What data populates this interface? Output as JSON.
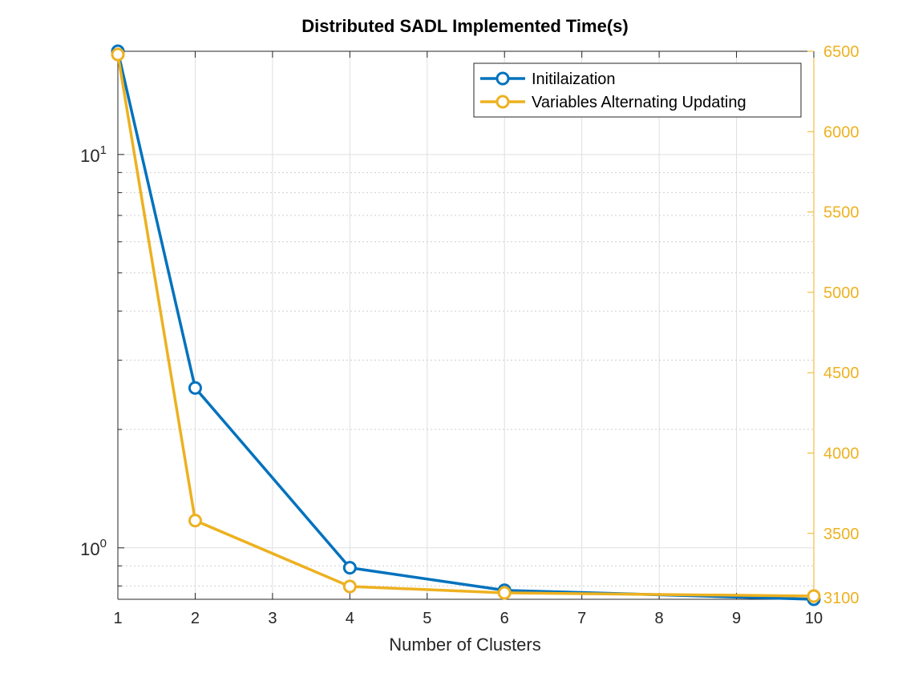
{
  "chart_data": {
    "type": "line",
    "title": "Distributed SADL Implemented Time(s)",
    "xlabel": "Number of Clusters",
    "ylabel_left": "",
    "ylabel_right": "",
    "x_tick_labels": [
      "1",
      "2",
      "3",
      "4",
      "5",
      "6",
      "7",
      "8",
      "9",
      "10"
    ],
    "categories": [
      "1",
      "2",
      "4",
      "6",
      "10"
    ],
    "y_left": {
      "scale": "log",
      "lim": [
        0.74,
        18.3
      ],
      "ticks": [
        {
          "value": 1,
          "base": "10",
          "exp": "0"
        },
        {
          "value": 10,
          "base": "10",
          "exp": "1"
        }
      ]
    },
    "y_right": {
      "scale": "linear",
      "lim": [
        3090,
        6500
      ],
      "ticks": [
        3100,
        3500,
        4000,
        4500,
        5000,
        5500,
        6000,
        6500
      ]
    },
    "grid": true,
    "legend_position": "top-right",
    "series": [
      {
        "name": "Initilaization",
        "axis": "left",
        "color": "#0072BD",
        "marker": "circle",
        "values": [
          18.3,
          2.55,
          0.89,
          0.78,
          0.74
        ]
      },
      {
        "name": "Variables Alternating Updating",
        "axis": "right",
        "color": "#EDB120",
        "marker": "circle",
        "values": [
          6480,
          3580,
          3170,
          3130,
          3110
        ]
      }
    ]
  },
  "colors": {
    "left_axis": "#262626",
    "right_axis": "#EDB120",
    "grid": "#dfdfdf"
  }
}
